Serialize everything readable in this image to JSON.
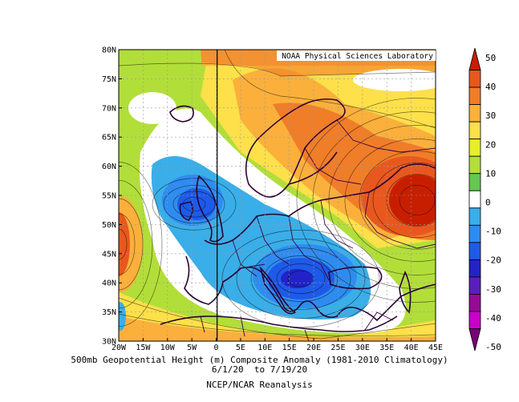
{
  "credit": "NOAA Physical Sciences Laboratory",
  "caption": {
    "line1": "500mb Geopotential Height (m) Composite Anomaly (1981-2010 Climatology)",
    "line2": "6/1/20  to 7/19/20",
    "line3": "NCEP/NCAR Reanalysis"
  },
  "lat_ticks": [
    "80N",
    "75N",
    "70N",
    "65N",
    "60N",
    "55N",
    "50N",
    "45N",
    "40N",
    "35N",
    "30N"
  ],
  "lon_ticks": [
    "20W",
    "15W",
    "10W",
    "5W",
    "0",
    "5E",
    "10E",
    "15E",
    "20E",
    "25E",
    "30E",
    "35E",
    "40E",
    "45E"
  ],
  "colorbar": {
    "labels": [
      "50",
      "40",
      "30",
      "20",
      "10",
      "0",
      "-10",
      "-20",
      "-30",
      "-40",
      "-50"
    ],
    "colors": [
      "#c81e00",
      "#e8581e",
      "#f07d28",
      "#fbb03c",
      "#fde04a",
      "#e8ee28",
      "#b2de3a",
      "#64c850",
      "#ffffff",
      "#3aaee8",
      "#2e8cf0",
      "#1e5ae8",
      "#2222c8",
      "#5a1ebe",
      "#960a96",
      "#c800c8",
      "#7a007a"
    ]
  },
  "anomaly_centers": [
    {
      "type": "high",
      "lon": 42,
      "lat": 52,
      "value_m": 50
    },
    {
      "type": "low",
      "lon": 18,
      "lat": 41,
      "value_m": -25
    },
    {
      "type": "low",
      "lon": -3,
      "lat": 53,
      "value_m": -22
    },
    {
      "type": "high",
      "lon": -20,
      "lat": 47,
      "value_m": 40
    }
  ]
}
